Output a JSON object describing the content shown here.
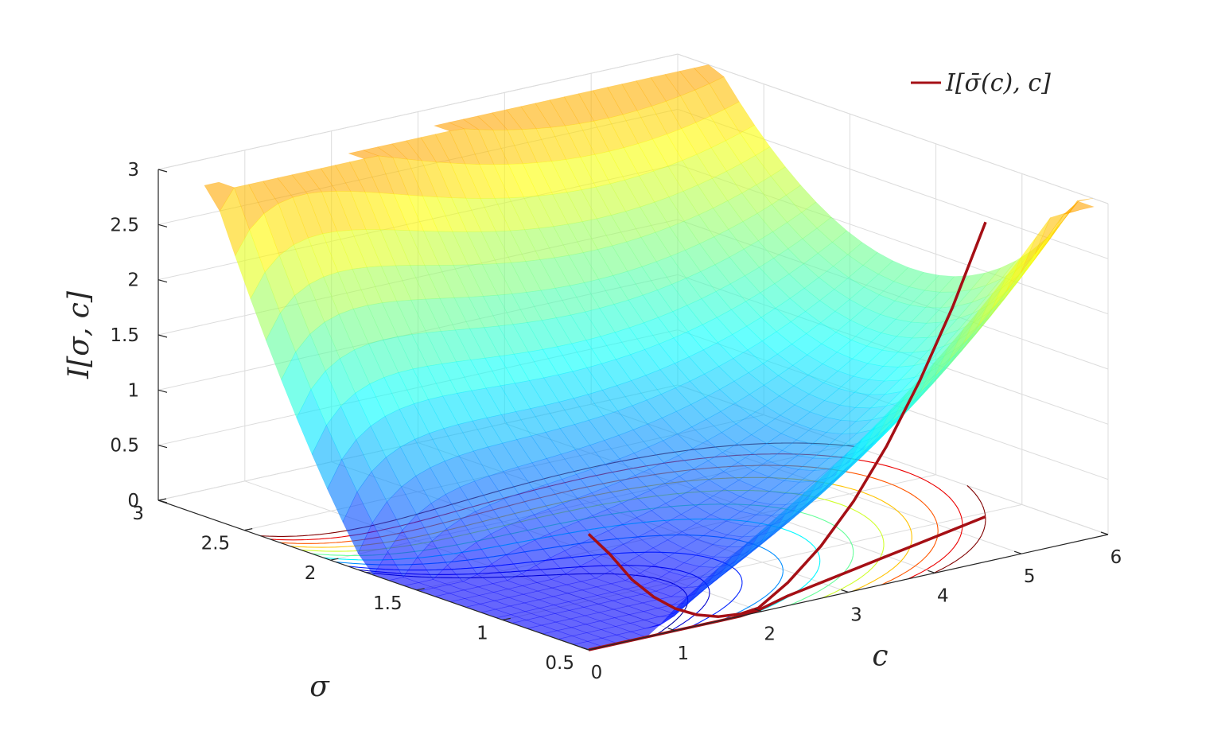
{
  "chart_data": {
    "type": "surface",
    "xlabel": "c",
    "ylabel": "σ",
    "zlabel": "I[σ, c]",
    "xlim": [
      0,
      6
    ],
    "ylim": [
      0.5,
      3
    ],
    "zlim": [
      0,
      3
    ],
    "x_ticks": [
      "0",
      "1",
      "2",
      "3",
      "4",
      "5",
      "6"
    ],
    "y_ticks": [
      "0.5",
      "1",
      "1.5",
      "2",
      "2.5",
      "3"
    ],
    "z_ticks": [
      "0",
      "0.5",
      "1",
      "1.5",
      "2",
      "2.5",
      "3"
    ],
    "grid": true,
    "colormap": "jet",
    "surface_alpha": 0.6,
    "contour_on_floor": true,
    "contour_levels": [
      0.05,
      0.15,
      0.3,
      0.5,
      0.7,
      0.9,
      1.1,
      1.3,
      1.5,
      1.7,
      1.9
    ],
    "curve": {
      "name": "I[σ̄(c), c]",
      "color": "#a50f15",
      "c": [
        0.0,
        0.25,
        0.5,
        0.75,
        1.0,
        1.25,
        1.5,
        1.75,
        2.0,
        2.5,
        3.0,
        3.5,
        4.0,
        4.5,
        5.0,
        5.5
      ],
      "sigma_bar": [
        0.5,
        0.5,
        0.5,
        0.5,
        0.5,
        0.5,
        0.5,
        0.5,
        0.52,
        0.6,
        0.66,
        0.72,
        0.78,
        0.84,
        0.9,
        0.96
      ],
      "I": [
        1.05,
        0.82,
        0.55,
        0.35,
        0.2,
        0.1,
        0.04,
        0.02,
        0.02,
        0.12,
        0.33,
        0.62,
        1.0,
        1.47,
        2.02,
        2.67
      ]
    },
    "legend": {
      "position": "top-right",
      "label": "I[σ̄(c), c]"
    }
  }
}
